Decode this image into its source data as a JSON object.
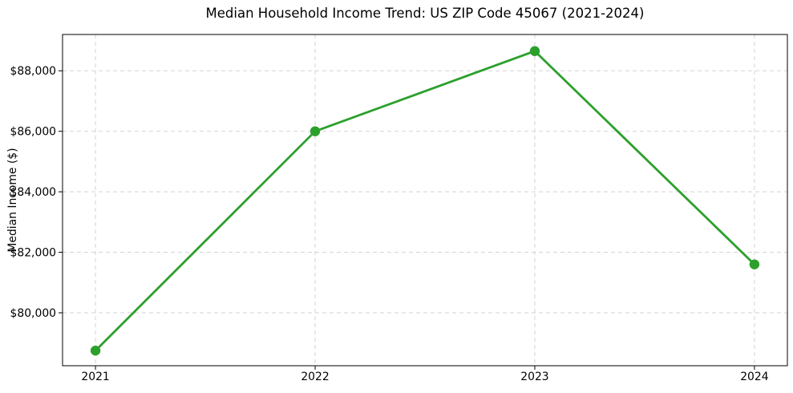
{
  "chart_data": {
    "type": "line",
    "title": "Median Household Income Trend: US ZIP Code 45067 (2021-2024)",
    "xlabel": "",
    "ylabel": "Median Income ($)",
    "x": [
      2021,
      2022,
      2023,
      2024
    ],
    "xtick_labels": [
      "2021",
      "2022",
      "2023",
      "2024"
    ],
    "yticks": [
      80000,
      82000,
      84000,
      86000,
      88000
    ],
    "ytick_labels": [
      "$80,000",
      "$82,000",
      "$84,000",
      "$86,000",
      "$88,000"
    ],
    "xlim": [
      2020.85,
      2024.15
    ],
    "ylim": [
      78250,
      89200
    ],
    "grid": true,
    "grid_style": "dashed",
    "legend": false,
    "background_color": "#ffffff",
    "grid_color": "#d3d3d3",
    "spine_color": "#000000",
    "series": [
      {
        "values": [
          78750,
          86000,
          88650,
          81600
        ],
        "color": "#2ca02c",
        "marker": "circle"
      }
    ]
  }
}
